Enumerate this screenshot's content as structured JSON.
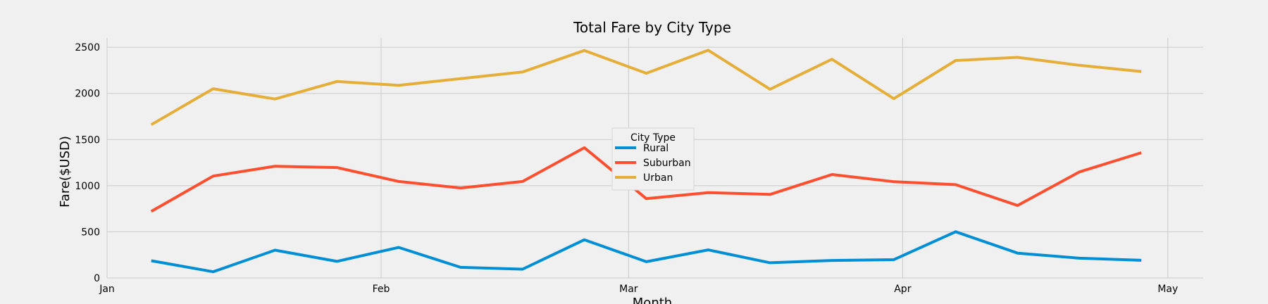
{
  "chart_data": {
    "type": "line",
    "title": "Total Fare by City Type",
    "xlabel": "Month",
    "ylabel": "Fare($USD)",
    "ylim": [
      0,
      2600
    ],
    "xlim": [
      "2019-01-01",
      "2019-05-05"
    ],
    "yticks": [
      0,
      500,
      1000,
      1500,
      2000,
      2500
    ],
    "xticks": [
      {
        "date": "2019-01-01",
        "label": "Jan"
      },
      {
        "date": "2019-02-01",
        "label": "Feb"
      },
      {
        "date": "2019-03-01",
        "label": "Mar"
      },
      {
        "date": "2019-04-01",
        "label": "Apr"
      },
      {
        "date": "2019-05-01",
        "label": "May"
      }
    ],
    "grid": true,
    "legend": {
      "title": "City Type",
      "placement": "center"
    },
    "x": [
      "2019-01-06",
      "2019-01-13",
      "2019-01-20",
      "2019-01-27",
      "2019-02-03",
      "2019-02-10",
      "2019-02-17",
      "2019-02-24",
      "2019-03-03",
      "2019-03-10",
      "2019-03-17",
      "2019-03-24",
      "2019-03-31",
      "2019-04-07",
      "2019-04-14",
      "2019-04-21",
      "2019-04-28"
    ],
    "series": [
      {
        "name": "Rural",
        "color": "#008fd5",
        "values": [
          187,
          67,
          301,
          180,
          331,
          115,
          95,
          414,
          176,
          304,
          165,
          190,
          198,
          501,
          269,
          214,
          191
        ]
      },
      {
        "name": "Suburban",
        "color": "#fc4f30",
        "values": [
          721,
          1104,
          1211,
          1196,
          1045,
          975,
          1045,
          1411,
          859,
          925,
          905,
          1121,
          1043,
          1011,
          785,
          1149,
          1357
        ]
      },
      {
        "name": "Urban",
        "color": "#e5ae38",
        "values": [
          1661,
          2050,
          1939,
          2129,
          2087,
          2160,
          2232,
          2465,
          2218,
          2467,
          2045,
          2370,
          1943,
          2356,
          2390,
          2304,
          2237
        ]
      }
    ]
  }
}
